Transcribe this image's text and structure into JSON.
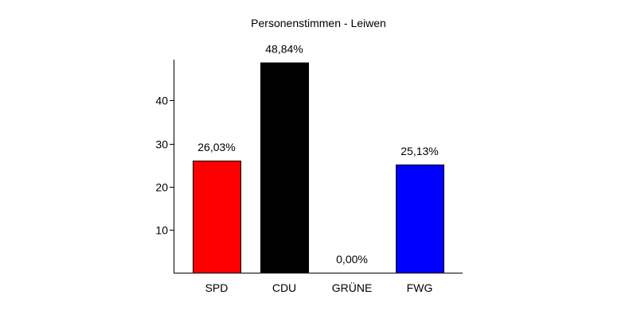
{
  "chart_data": {
    "type": "bar",
    "title": "Personenstimmen - Leiwen",
    "xlabel": "",
    "ylabel": "",
    "categories": [
      "SPD",
      "CDU",
      "GRÜNE",
      "FWG"
    ],
    "values": [
      26.03,
      48.84,
      0.0,
      25.13
    ],
    "value_labels": [
      "26,03%",
      "48,84%",
      "0,00%",
      "25,13%"
    ],
    "colors": [
      "#ff0000",
      "#000000",
      "#00aa00",
      "#0000ff"
    ],
    "ylim": [
      0,
      49.5
    ],
    "yticks": [
      10,
      20,
      30,
      40
    ],
    "ytick_labels": [
      "10",
      "20",
      "30",
      "40"
    ],
    "grid": false,
    "legend": "none"
  }
}
